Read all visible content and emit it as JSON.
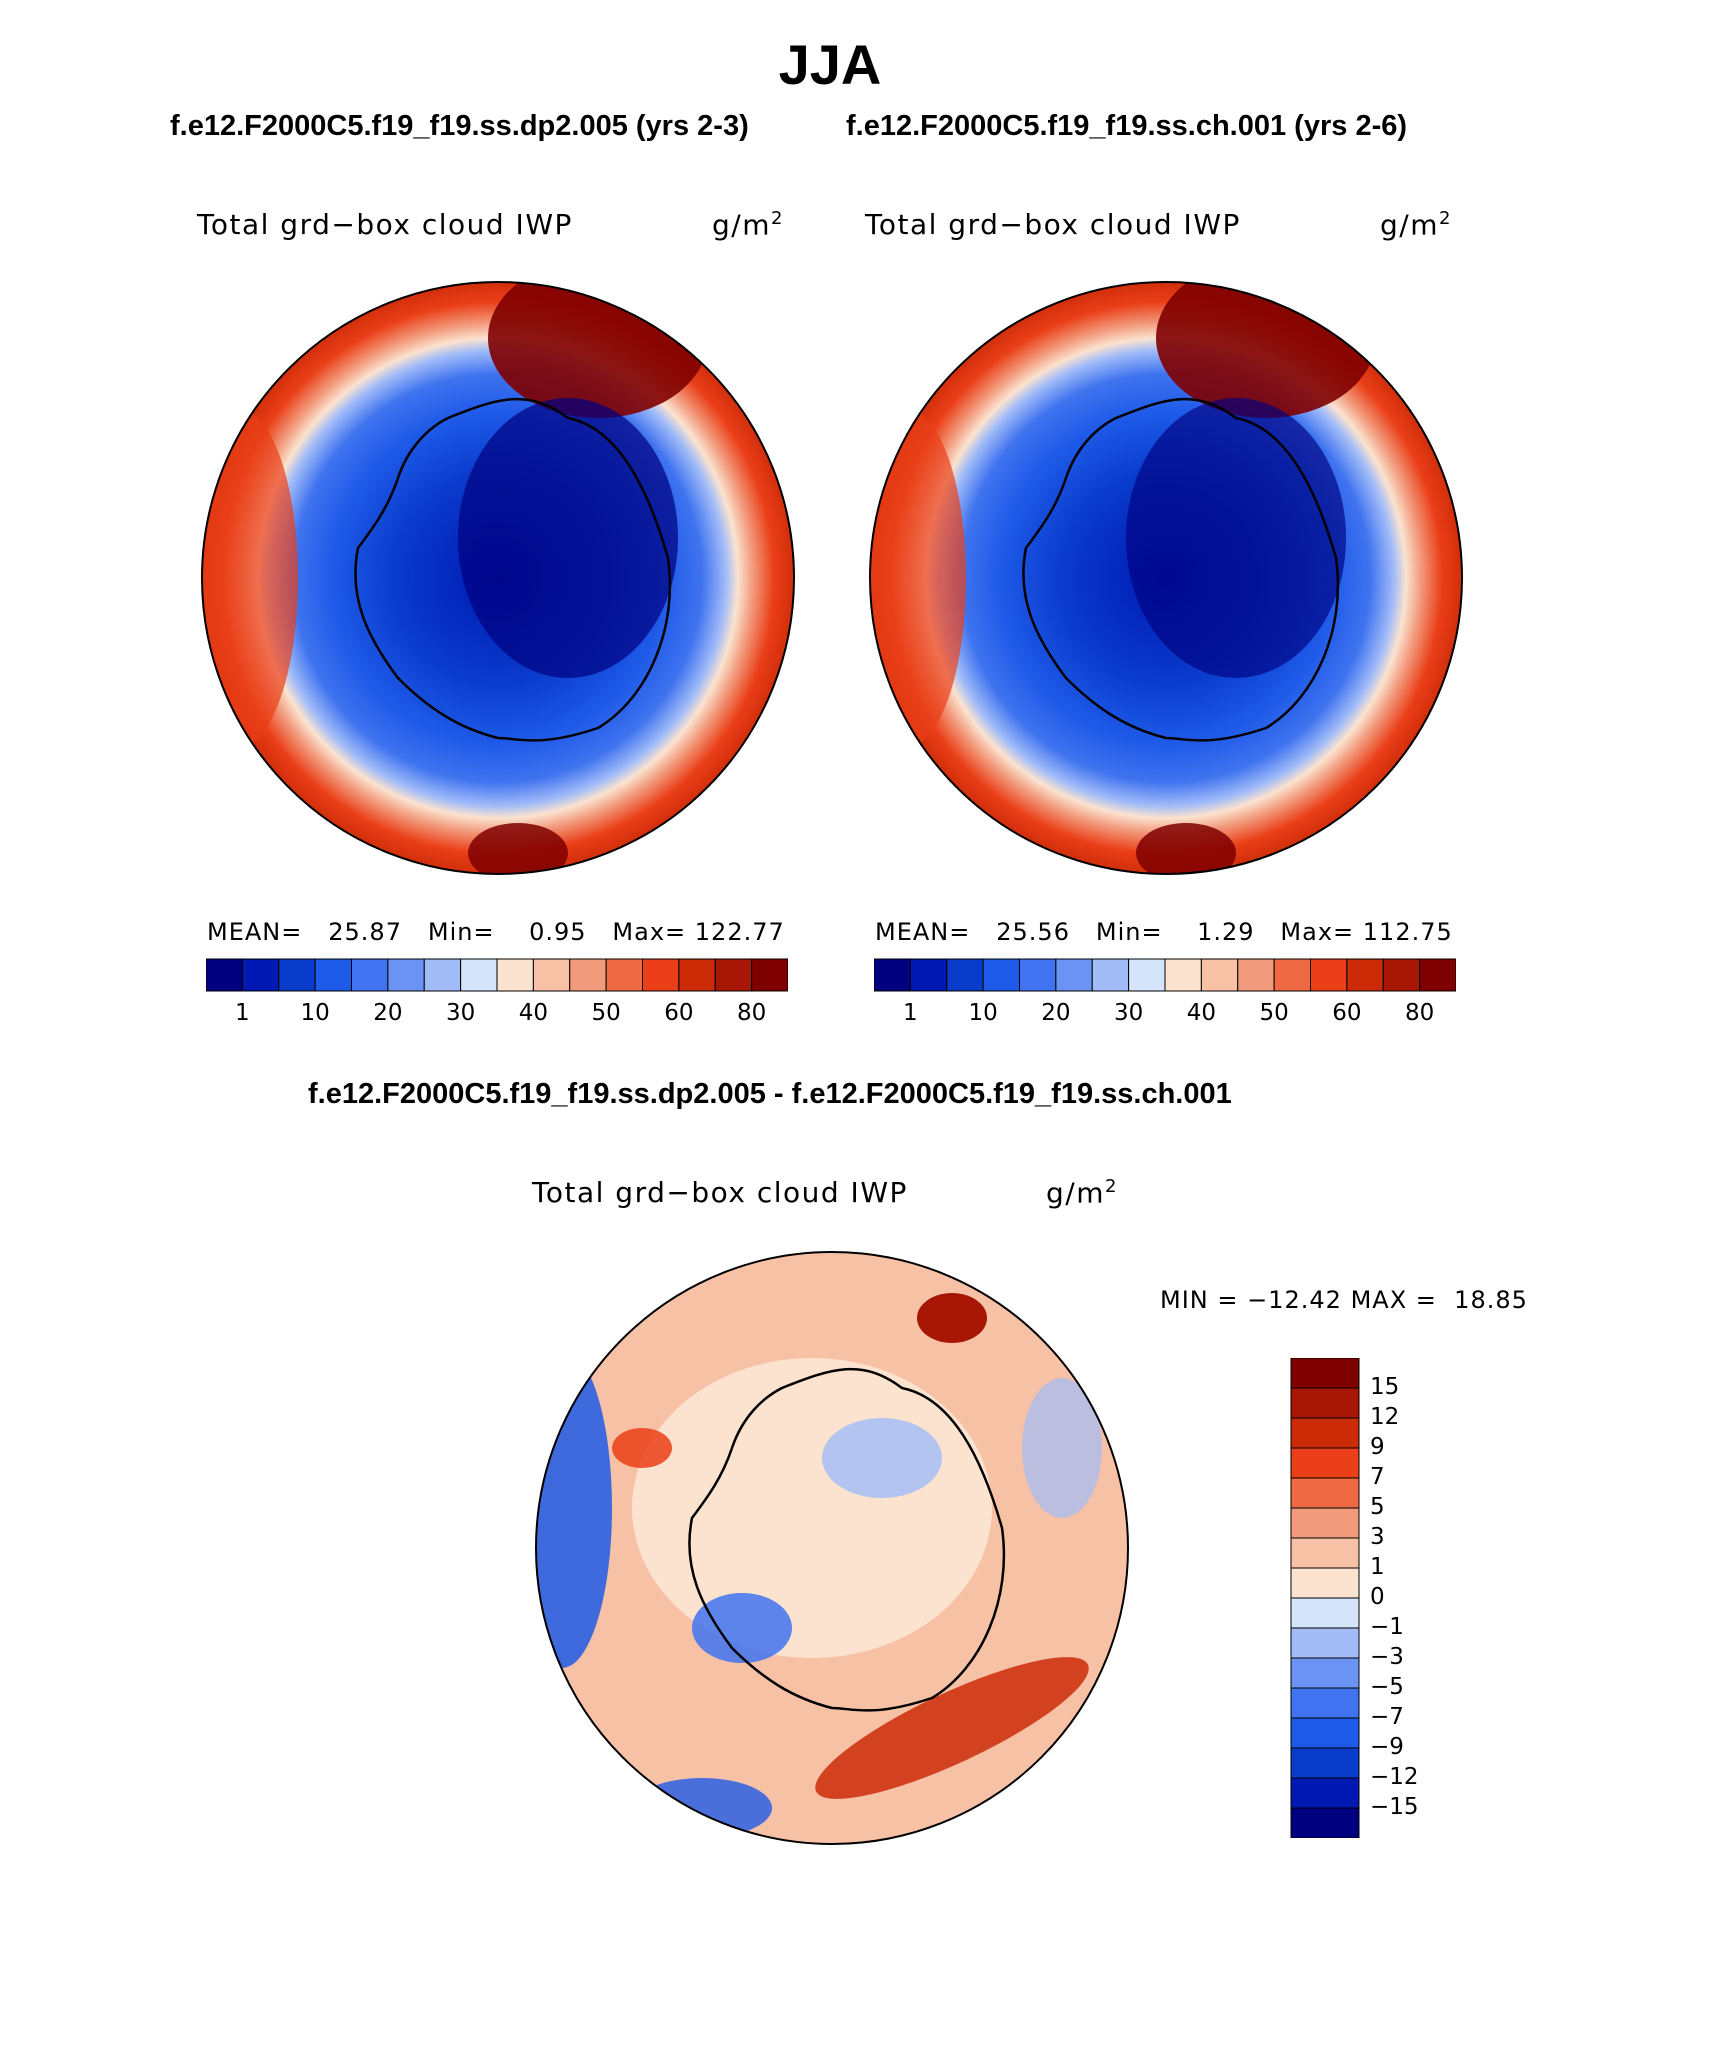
{
  "title": "JJA",
  "case1_header": "f.e12.F2000C5.f19_f19.ss.dp2.005 (yrs 2-3)",
  "case2_header": "f.e12.F2000C5.f19_f19.ss.ch.001 (yrs 2-6)",
  "diff_header": "f.e12.F2000C5.f19_f19.ss.dp2.005 - f.e12.F2000C5.f19_f19.ss.ch.001",
  "variable": "Total grd−box cloud IWP",
  "units": "g/m",
  "units_sup": "2",
  "panel1": {
    "mean_label": "MEAN=",
    "mean": "25.87",
    "min_label": "Min=",
    "min": "0.95",
    "max_label": "Max=",
    "max": "122.77"
  },
  "panel2": {
    "mean_label": "MEAN=",
    "mean": "25.56",
    "min_label": "Min=",
    "min": "1.29",
    "max_label": "Max=",
    "max": "112.75"
  },
  "diff_panel": {
    "min_label": "MIN =",
    "min": "−12.42",
    "max_label": "MAX =",
    "max": "18.85"
  },
  "colorbar_ticks": [
    "1",
    "10",
    "20",
    "30",
    "40",
    "50",
    "60",
    "80"
  ],
  "colorbar_colors": [
    "#00007f",
    "#0019b2",
    "#0a3ccc",
    "#1e5ae8",
    "#3f73ef",
    "#6a93f3",
    "#a2bcf8",
    "#d4e4fb",
    "#fbe3d0",
    "#f7c1a6",
    "#f29a7c",
    "#ef6a42",
    "#ea3f18",
    "#cc2b08",
    "#a81706",
    "#7f0000"
  ],
  "diff_ticks": [
    "15",
    "12",
    "9",
    "7",
    "5",
    "3",
    "1",
    "0",
    "−1",
    "−3",
    "−5",
    "−7",
    "−9",
    "−12",
    "−15"
  ],
  "diff_colors": [
    "#7f0000",
    "#a81706",
    "#cc2b08",
    "#ea3f18",
    "#ef6a42",
    "#f29a7c",
    "#f7c1a6",
    "#fbe3d0",
    "#d4e4fb",
    "#a2bcf8",
    "#6a93f3",
    "#3f73ef",
    "#1e5ae8",
    "#0a3ccc",
    "#0019b2",
    "#00007f"
  ]
}
